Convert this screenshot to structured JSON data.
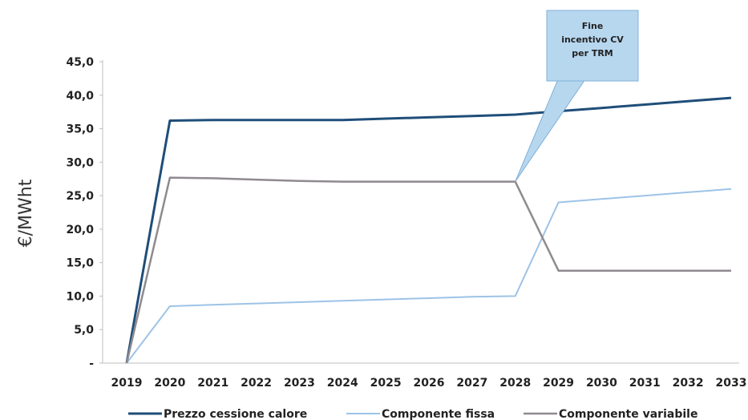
{
  "chart_data": {
    "type": "line",
    "ylabel": "€/MWht",
    "xlabel": "",
    "title": "",
    "ylim": [
      0,
      45
    ],
    "y_ticks": [
      "-",
      "5,0",
      "10,0",
      "15,0",
      "20,0",
      "25,0",
      "30,0",
      "35,0",
      "40,0",
      "45,0"
    ],
    "categories": [
      "2019",
      "2020",
      "2021",
      "2022",
      "2023",
      "2024",
      "2025",
      "2026",
      "2027",
      "2028",
      "2029",
      "2030",
      "2031",
      "2032",
      "2033"
    ],
    "series": [
      {
        "name": "Prezzo cessione calore",
        "color": "#1f4e79",
        "values": [
          0,
          36.2,
          36.3,
          36.3,
          36.3,
          36.3,
          36.5,
          36.7,
          36.9,
          37.1,
          37.6,
          38.1,
          38.6,
          39.1,
          39.6
        ]
      },
      {
        "name": "Componente fissa",
        "color": "#9dc3e6",
        "values": [
          0,
          8.5,
          8.7,
          8.9,
          9.1,
          9.3,
          9.5,
          9.7,
          9.9,
          10.0,
          24.0,
          24.5,
          25.0,
          25.5,
          26.0
        ]
      },
      {
        "name": "Componente variabile",
        "color": "#8f8a8f",
        "values": [
          0,
          27.7,
          27.6,
          27.4,
          27.2,
          27.1,
          27.1,
          27.1,
          27.1,
          27.1,
          13.8,
          13.8,
          13.8,
          13.8,
          13.8
        ]
      }
    ],
    "grid": false,
    "legend_position": "bottom",
    "annotation": {
      "lines": [
        "Fine",
        "incentivo CV",
        "per TRM"
      ],
      "target_category": "2028",
      "target_value": 27.1
    }
  }
}
